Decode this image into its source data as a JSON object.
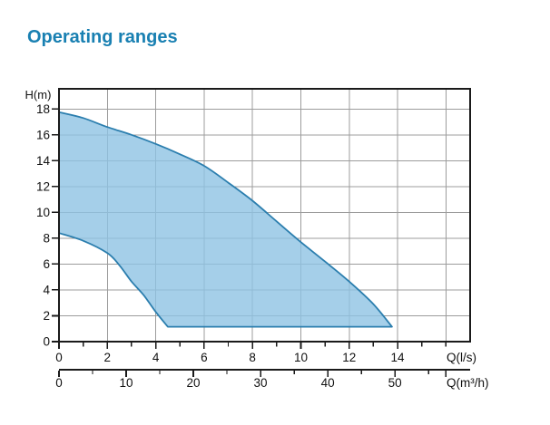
{
  "page": {
    "title": "Operating ranges"
  },
  "chart_data": {
    "type": "area",
    "title": "Operating ranges",
    "ylabel": "H(m)",
    "xlabel_primary": "Q(l/s)",
    "xlabel_secondary": "Q(m³/h)",
    "y_axis": {
      "label": "H(m)",
      "major_ticks": [
        0,
        2,
        4,
        6,
        8,
        10,
        12,
        14,
        16,
        18
      ],
      "axis_max": 19.56
    },
    "x_axis_ls": {
      "label": "Q(l/s)",
      "major_ticks": [
        0,
        2,
        4,
        6,
        8,
        10,
        12,
        14
      ],
      "minor_ticks": [
        1,
        3,
        5,
        7,
        9,
        11,
        13,
        15,
        16
      ],
      "axis_max": 17
    },
    "x_axis_m3h": {
      "label": "Q(m³/h)",
      "major_ticks": [
        0,
        10,
        20,
        30,
        40,
        50
      ],
      "minor_ticks": [
        5,
        15,
        25,
        35,
        45,
        55
      ],
      "end_tick": 57.6,
      "m3h_per_ls": 3.6
    },
    "grid": {
      "x_lines_ls": [
        2,
        4,
        6,
        8,
        10,
        12,
        14,
        16
      ],
      "y_lines_m": [
        2,
        4,
        6,
        8,
        10,
        12,
        14,
        16,
        18
      ]
    },
    "region": {
      "upper_curve": [
        [
          0,
          17.75
        ],
        [
          1,
          17.3
        ],
        [
          2,
          16.6
        ],
        [
          3,
          16.0
        ],
        [
          4,
          15.3
        ],
        [
          5,
          14.5
        ],
        [
          6,
          13.6
        ],
        [
          7,
          12.3
        ],
        [
          8,
          10.9
        ],
        [
          9,
          9.3
        ],
        [
          10,
          7.7
        ],
        [
          11,
          6.2
        ],
        [
          12,
          4.65
        ],
        [
          13,
          2.9
        ],
        [
          13.77,
          1.15
        ]
      ],
      "lower_curve": [
        [
          0,
          8.4
        ],
        [
          1,
          7.8
        ],
        [
          2,
          6.85
        ],
        [
          2.5,
          5.9
        ],
        [
          3,
          4.65
        ],
        [
          3.5,
          3.6
        ],
        [
          4,
          2.3
        ],
        [
          4.5,
          1.15
        ]
      ],
      "bottom_h": 1.15,
      "tip_x_ls": 13.77
    },
    "colors": {
      "region_fill": "#8FC3E3",
      "region_fill_opacity": 0.8,
      "region_stroke": "#2B7EAE",
      "grid": "#9C9C9C",
      "axis": "#1A1A1A",
      "title": "#1980B2",
      "text": "#111111"
    }
  }
}
